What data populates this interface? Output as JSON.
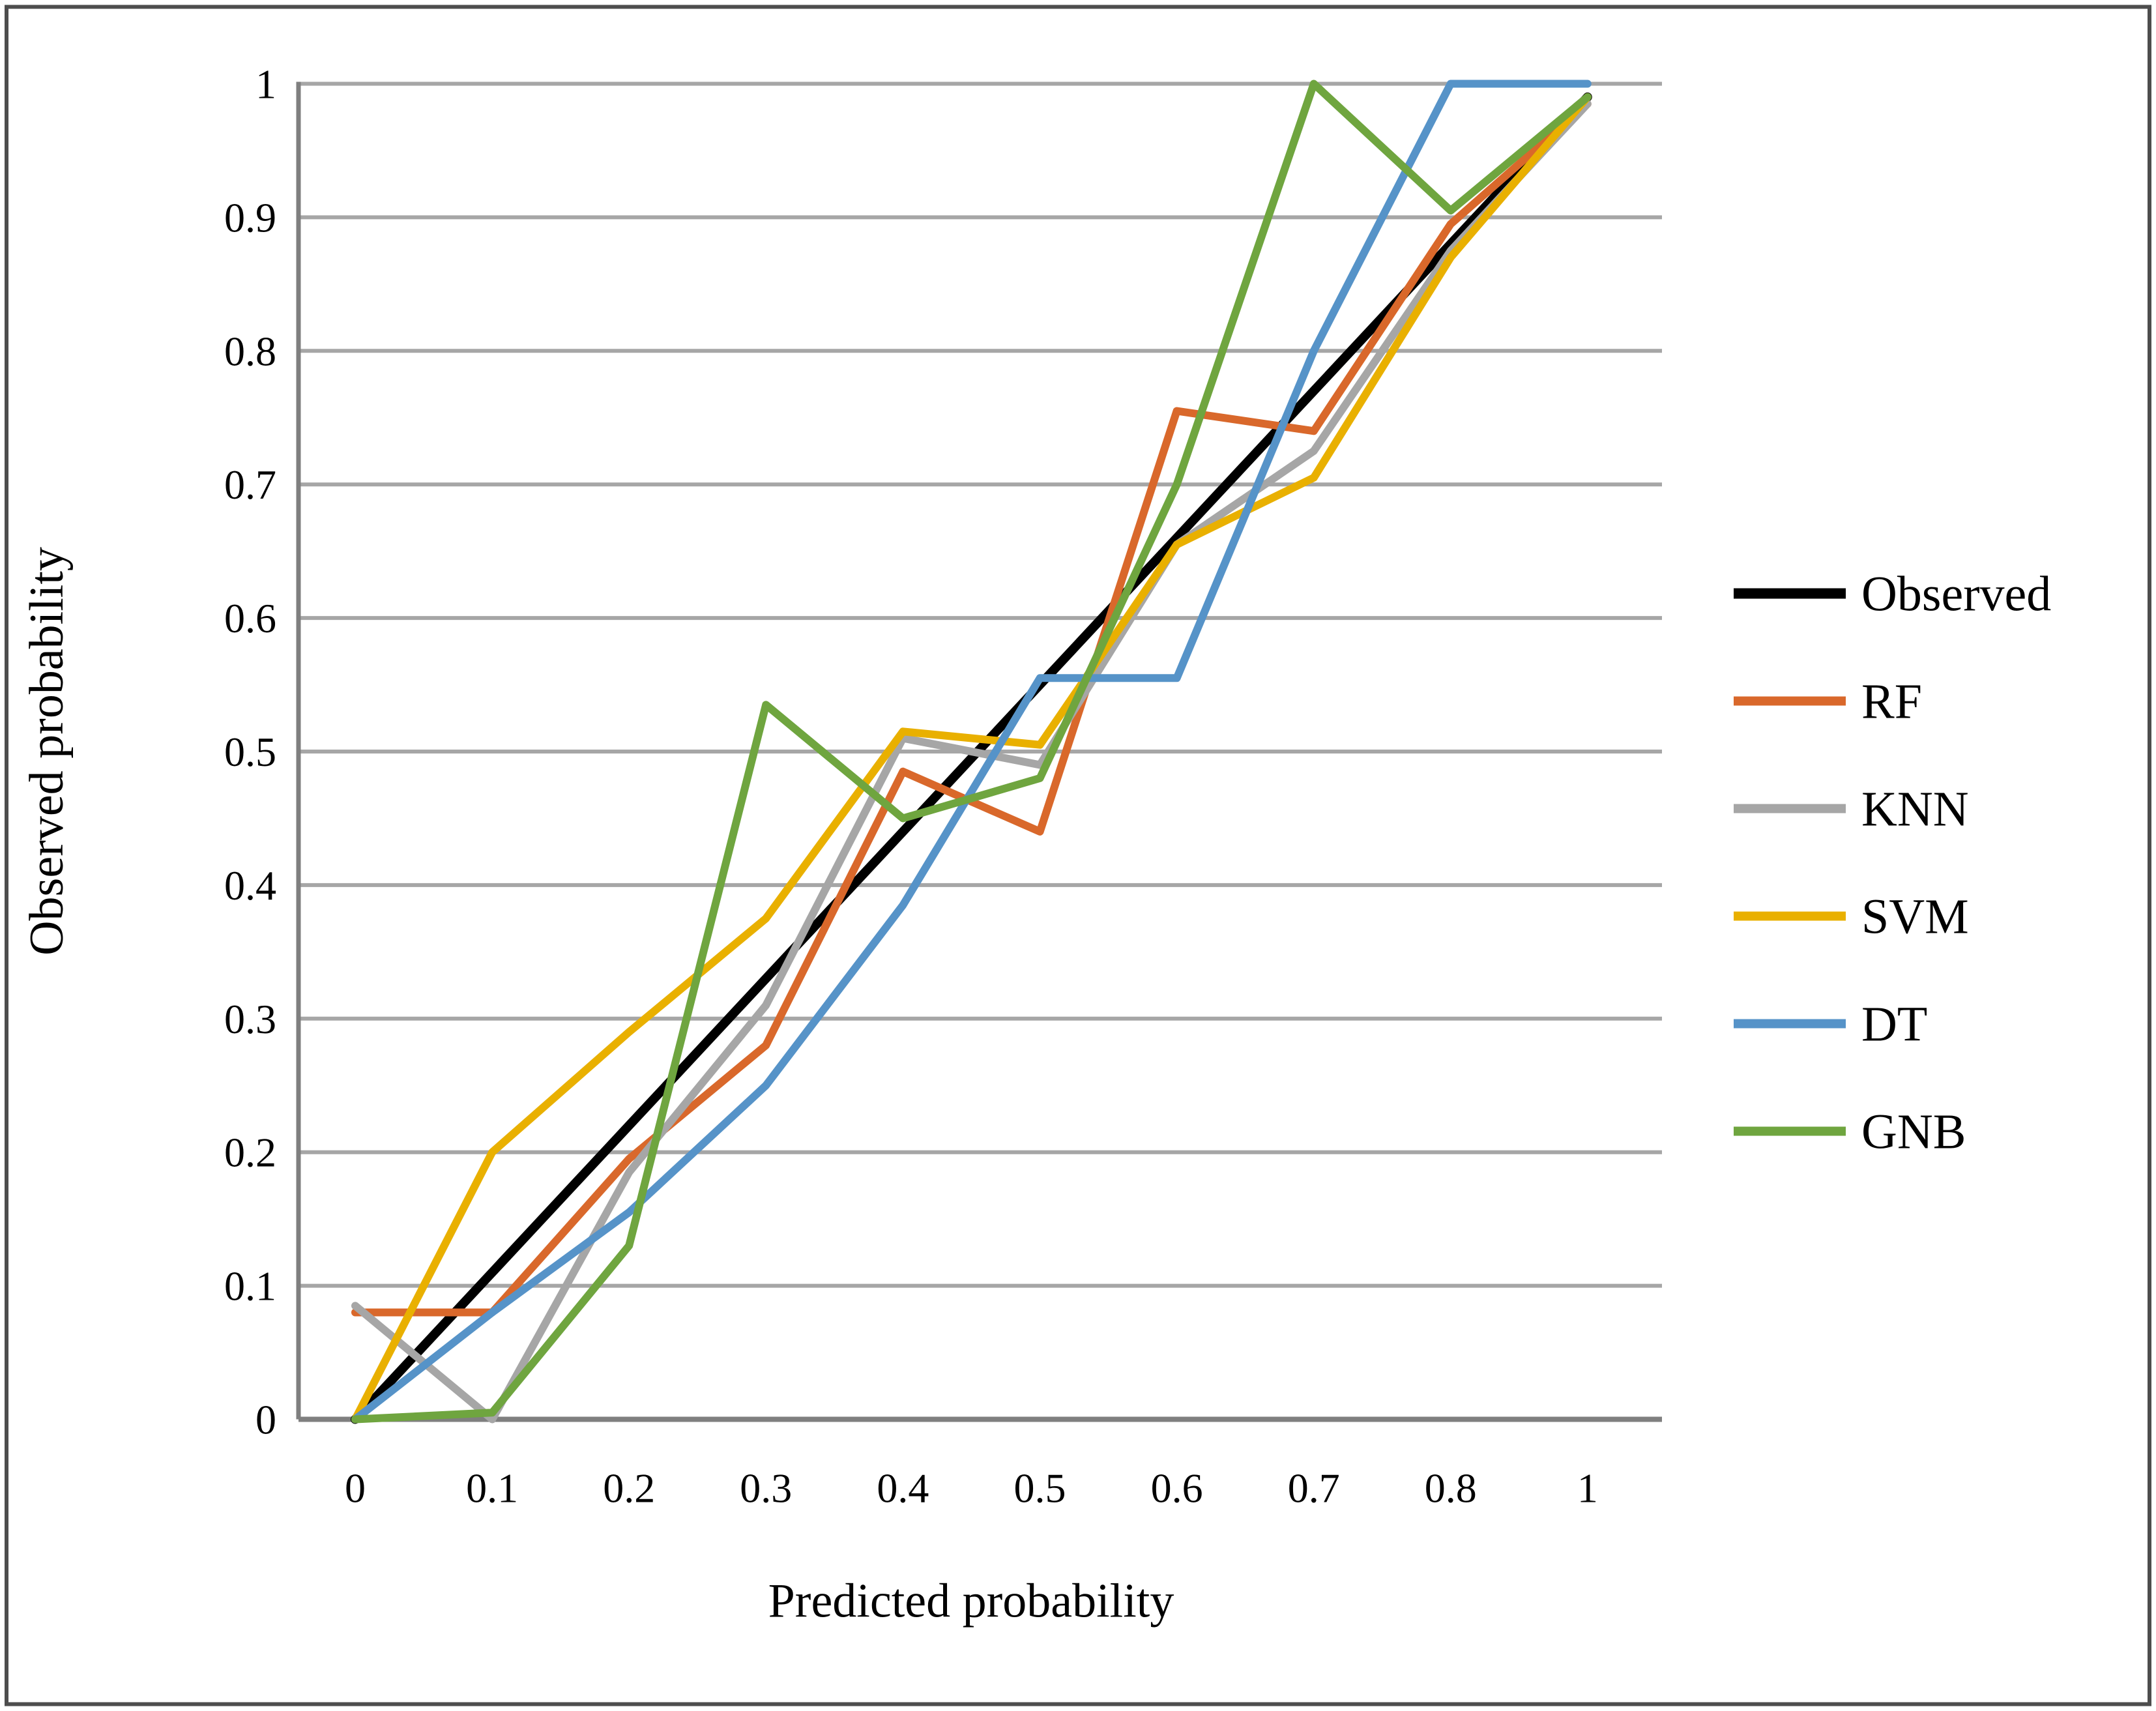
{
  "figure": {
    "background": "#ffffff",
    "border_color": "#4d4d4d",
    "axis_color": "#7f7f7f",
    "gridline_color": "#a6a6a6"
  },
  "chart_data": {
    "type": "line",
    "title": "",
    "xlabel": "Predicted probability",
    "ylabel": "Observed probability",
    "categories": [
      "0",
      "0.1",
      "0.2",
      "0.3",
      "0.4",
      "0.5",
      "0.6",
      "0.7",
      "0.8",
      "1"
    ],
    "y_ticks": [
      "0",
      "0.1",
      "0.2",
      "0.3",
      "0.4",
      "0.5",
      "0.6",
      "0.7",
      "0.8",
      "0.9",
      "1"
    ],
    "ylim": [
      0,
      1
    ],
    "grid": true,
    "legend_position": "right-center",
    "series": [
      {
        "name": "Observed",
        "color": "#000000",
        "width": 7,
        "values": [
          0,
          0.11,
          0.22,
          0.33,
          0.44,
          0.55,
          0.66,
          0.77,
          0.88,
          0.99
        ]
      },
      {
        "name": "RF",
        "color": "#D9682B",
        "width": 6,
        "values": [
          0.08,
          0.08,
          0.195,
          0.28,
          0.485,
          0.44,
          0.755,
          0.74,
          0.895,
          0.985
        ]
      },
      {
        "name": "KNN",
        "color": "#A6A6A6",
        "width": 6,
        "values": [
          0.085,
          0,
          0.185,
          0.31,
          0.51,
          0.49,
          0.655,
          0.725,
          0.875,
          0.985
        ]
      },
      {
        "name": "SVM",
        "color": "#E9B000",
        "width": 6,
        "values": [
          0,
          0.2,
          0.29,
          0.375,
          0.515,
          0.505,
          0.655,
          0.705,
          0.87,
          0.99
        ]
      },
      {
        "name": "DT",
        "color": "#5693C8",
        "width": 6,
        "values": [
          0,
          0.08,
          0.155,
          0.25,
          0.385,
          0.555,
          0.555,
          0.8,
          1,
          1
        ]
      },
      {
        "name": "GNB",
        "color": "#6FA53F",
        "width": 6,
        "values": [
          0,
          0.005,
          0.13,
          0.535,
          0.45,
          0.48,
          0.7,
          1,
          0.905,
          0.99
        ]
      }
    ]
  }
}
